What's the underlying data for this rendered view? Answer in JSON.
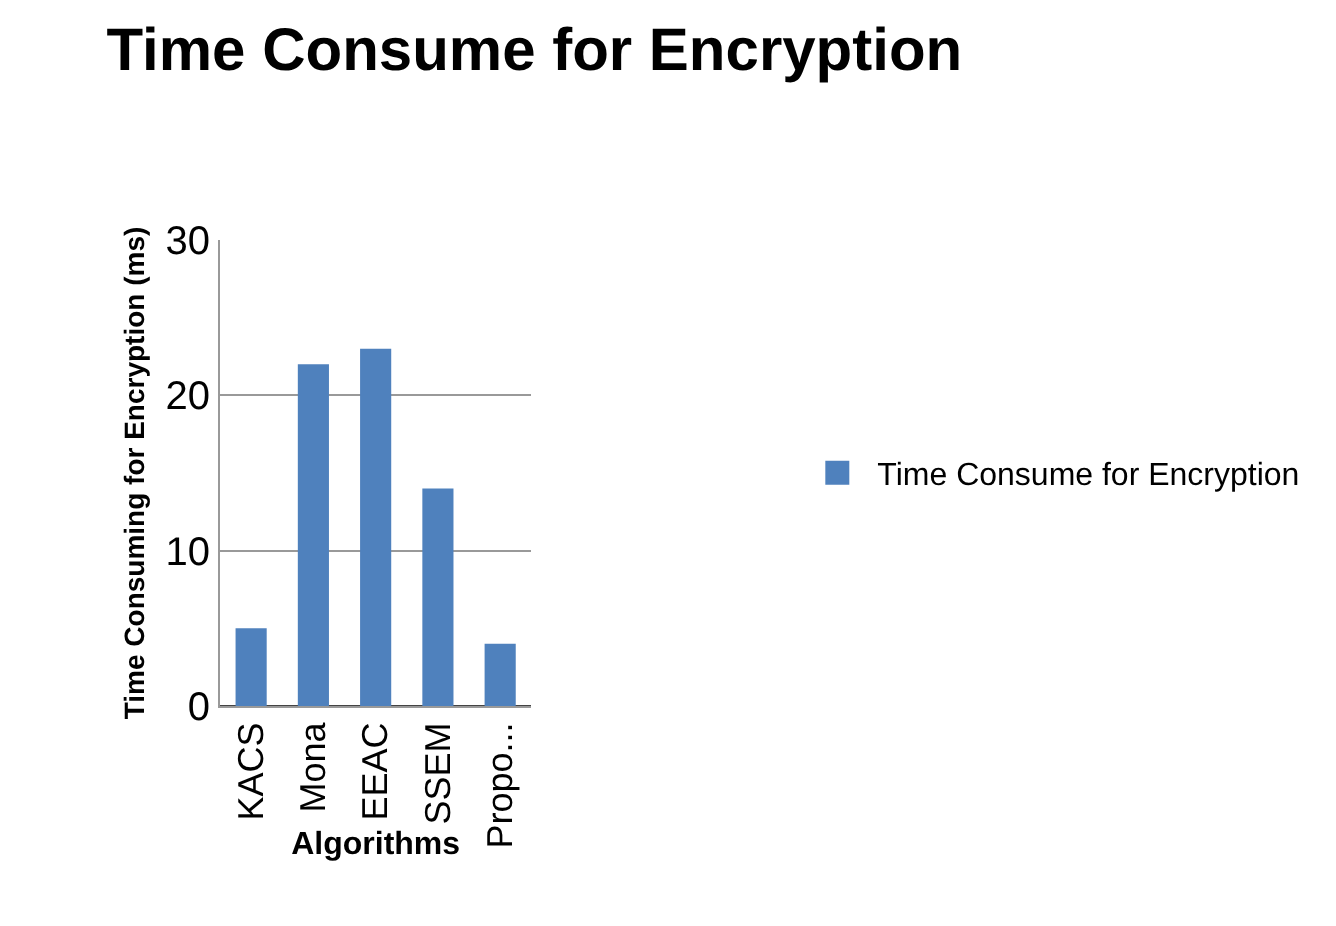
{
  "chart_data": {
    "type": "bar",
    "title": "Time Consume for Encryption",
    "xlabel": "Algorithms",
    "ylabel": "Time Consuming for Encryption (ms)",
    "categories": [
      "KACS",
      "Mona",
      "EEAC",
      "SSEM",
      "Propo..."
    ],
    "series": [
      {
        "name": "Time Consume for Encryption",
        "color": "#4f81bd",
        "values": [
          5,
          22,
          23,
          14,
          4
        ]
      }
    ],
    "ylim": [
      0,
      30
    ],
    "yticks": [
      0,
      10,
      20,
      30
    ],
    "grid": "y",
    "legend": "right"
  }
}
